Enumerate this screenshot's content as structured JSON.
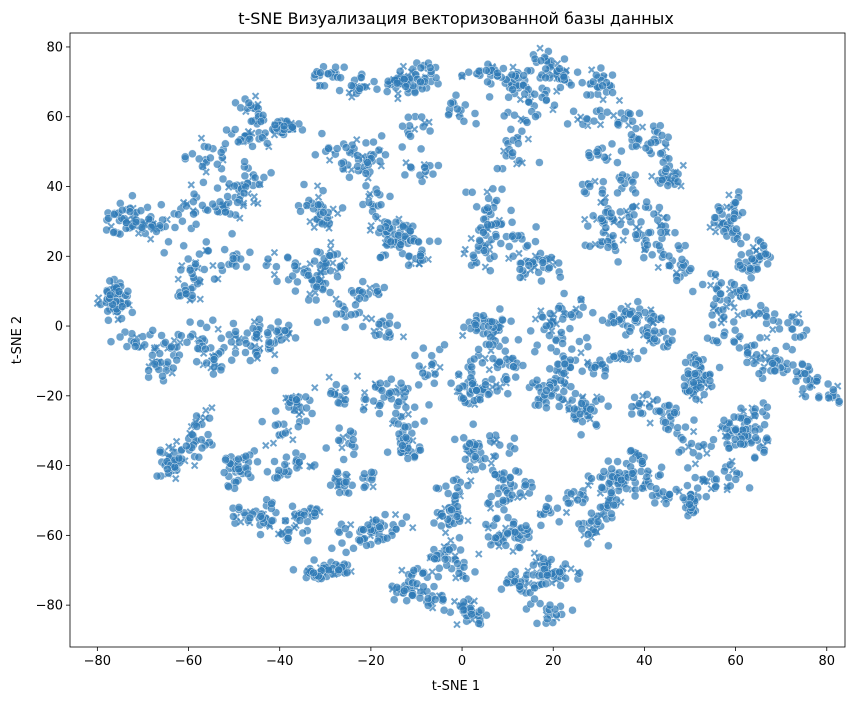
{
  "chart_data": {
    "type": "scatter",
    "title": "t-SNE Визуализация векторизованной базы данных",
    "xlabel": "t-SNE 1",
    "ylabel": "t-SNE 2",
    "xlim": [
      -86,
      84
    ],
    "ylim": [
      -92,
      84
    ],
    "xticks": [
      -80,
      -60,
      -40,
      -20,
      0,
      20,
      40,
      60,
      80
    ],
    "yticks": [
      -80,
      -60,
      -40,
      -20,
      0,
      20,
      40,
      60,
      80
    ],
    "xtick_labels": [
      "−80",
      "−60",
      "−40",
      "−20",
      "0",
      "20",
      "40",
      "60",
      "80"
    ],
    "ytick_labels": [
      "−80",
      "−60",
      "−40",
      "−20",
      "0",
      "20",
      "40",
      "60",
      "80"
    ],
    "grid": false,
    "marker_color": "#2f7bb6",
    "marker_edge": "#ffffff",
    "marker_alpha": 0.7,
    "markers": [
      "circle",
      "x"
    ],
    "clusters": [
      {
        "cx": -75,
        "cy": 5,
        "sx": 3,
        "sy": 6,
        "n": 60
      },
      {
        "cx": -70,
        "cy": -10,
        "sx": 5,
        "sy": 4,
        "n": 55
      },
      {
        "cx": -68,
        "cy": 28,
        "sx": 5,
        "sy": 5,
        "n": 70
      },
      {
        "cx": -60,
        "cy": 20,
        "sx": 4,
        "sy": 10,
        "n": 55
      },
      {
        "cx": -55,
        "cy": 50,
        "sx": 6,
        "sy": 6,
        "n": 65
      },
      {
        "cx": -45,
        "cy": 55,
        "sx": 6,
        "sy": 2,
        "n": 40
      },
      {
        "cx": -36,
        "cy": 58,
        "sx": 4,
        "sy": 2,
        "n": 30
      },
      {
        "cx": -50,
        "cy": 25,
        "sx": 5,
        "sy": 6,
        "n": 50
      },
      {
        "cx": -55,
        "cy": -5,
        "sx": 5,
        "sy": 6,
        "n": 55
      },
      {
        "cx": -60,
        "cy": -35,
        "sx": 4,
        "sy": 5,
        "n": 60
      },
      {
        "cx": -52,
        "cy": -42,
        "sx": 3,
        "sy": 3,
        "n": 30
      },
      {
        "cx": -45,
        "cy": -25,
        "sx": 5,
        "sy": 4,
        "n": 40
      },
      {
        "cx": -45,
        "cy": -52,
        "sx": 3,
        "sy": 4,
        "n": 35
      },
      {
        "cx": -38,
        "cy": -58,
        "sx": 4,
        "sy": 4,
        "n": 40
      },
      {
        "cx": -28,
        "cy": -70,
        "sx": 5,
        "sy": 2,
        "n": 55
      },
      {
        "cx": -38,
        "cy": -40,
        "sx": 4,
        "sy": 4,
        "n": 40
      },
      {
        "cx": -35,
        "cy": 10,
        "sx": 5,
        "sy": 5,
        "n": 50
      },
      {
        "cx": -40,
        "cy": -5,
        "sx": 4,
        "sy": 4,
        "n": 45
      },
      {
        "cx": -30,
        "cy": 30,
        "sx": 4,
        "sy": 7,
        "n": 55
      },
      {
        "cx": -25,
        "cy": 50,
        "sx": 5,
        "sy": 5,
        "n": 50
      },
      {
        "cx": -22,
        "cy": 70,
        "sx": 6,
        "sy": 3,
        "n": 60
      },
      {
        "cx": -8,
        "cy": 70,
        "sx": 5,
        "sy": 3,
        "n": 45
      },
      {
        "cx": -20,
        "cy": 5,
        "sx": 5,
        "sy": 4,
        "n": 50
      },
      {
        "cx": -18,
        "cy": 28,
        "sx": 4,
        "sy": 5,
        "n": 40
      },
      {
        "cx": -28,
        "cy": -28,
        "sx": 4,
        "sy": 5,
        "n": 45
      },
      {
        "cx": -25,
        "cy": -45,
        "sx": 3,
        "sy": 4,
        "n": 30
      },
      {
        "cx": -18,
        "cy": -60,
        "sx": 6,
        "sy": 4,
        "n": 55
      },
      {
        "cx": -12,
        "cy": -72,
        "sx": 4,
        "sy": 3,
        "n": 40
      },
      {
        "cx": -8,
        "cy": -15,
        "sx": 5,
        "sy": 7,
        "n": 60
      },
      {
        "cx": -12,
        "cy": -35,
        "sx": 4,
        "sy": 5,
        "n": 45
      },
      {
        "cx": -5,
        "cy": -50,
        "sx": 4,
        "sy": 5,
        "n": 45
      },
      {
        "cx": 0,
        "cy": -80,
        "sx": 4,
        "sy": 3,
        "n": 55
      },
      {
        "cx": -2,
        "cy": -65,
        "sx": 4,
        "sy": 3,
        "n": 40
      },
      {
        "cx": 10,
        "cy": -62,
        "sx": 5,
        "sy": 4,
        "n": 45
      },
      {
        "cx": 15,
        "cy": -75,
        "sx": 5,
        "sy": 4,
        "n": 50
      },
      {
        "cx": 12,
        "cy": -48,
        "sx": 5,
        "sy": 4,
        "n": 45
      },
      {
        "cx": 5,
        "cy": -35,
        "sx": 4,
        "sy": 4,
        "n": 40
      },
      {
        "cx": 0,
        "cy": -20,
        "sx": 4,
        "sy": 4,
        "n": 40
      },
      {
        "cx": 10,
        "cy": -15,
        "sx": 4,
        "sy": 4,
        "n": 40
      },
      {
        "cx": 5,
        "cy": 0,
        "sx": 5,
        "sy": 4,
        "n": 45
      },
      {
        "cx": -8,
        "cy": 25,
        "sx": 5,
        "sy": 6,
        "n": 55
      },
      {
        "cx": 5,
        "cy": 30,
        "sx": 4,
        "sy": 8,
        "n": 60
      },
      {
        "cx": -5,
        "cy": 55,
        "sx": 5,
        "sy": 5,
        "n": 45
      },
      {
        "cx": 5,
        "cy": 72,
        "sx": 6,
        "sy": 3,
        "n": 55
      },
      {
        "cx": 15,
        "cy": 55,
        "sx": 5,
        "sy": 6,
        "n": 50
      },
      {
        "cx": 20,
        "cy": 70,
        "sx": 5,
        "sy": 3,
        "n": 45
      },
      {
        "cx": 15,
        "cy": 20,
        "sx": 5,
        "sy": 5,
        "n": 50
      },
      {
        "cx": 20,
        "cy": 0,
        "sx": 5,
        "sy": 5,
        "n": 50
      },
      {
        "cx": 22,
        "cy": -20,
        "sx": 5,
        "sy": 4,
        "n": 45
      },
      {
        "cx": 22,
        "cy": -60,
        "sx": 4,
        "sy": 5,
        "n": 40
      },
      {
        "cx": 20,
        "cy": -72,
        "sx": 4,
        "sy": 3,
        "n": 35
      },
      {
        "cx": 30,
        "cy": -45,
        "sx": 5,
        "sy": 3,
        "n": 45
      },
      {
        "cx": 30,
        "cy": -57,
        "sx": 3,
        "sy": 5,
        "n": 35
      },
      {
        "cx": 32,
        "cy": -28,
        "sx": 5,
        "sy": 5,
        "n": 50
      },
      {
        "cx": 30,
        "cy": -12,
        "sx": 5,
        "sy": 3,
        "n": 45
      },
      {
        "cx": 35,
        "cy": 3,
        "sx": 4,
        "sy": 4,
        "n": 40
      },
      {
        "cx": 28,
        "cy": 25,
        "sx": 5,
        "sy": 5,
        "n": 50
      },
      {
        "cx": 28,
        "cy": 45,
        "sx": 4,
        "sy": 5,
        "n": 40
      },
      {
        "cx": 30,
        "cy": 65,
        "sx": 4,
        "sy": 4,
        "n": 40
      },
      {
        "cx": 40,
        "cy": 55,
        "sx": 4,
        "sy": 5,
        "n": 45
      },
      {
        "cx": 42,
        "cy": 40,
        "sx": 4,
        "sy": 5,
        "n": 40
      },
      {
        "cx": 45,
        "cy": 25,
        "sx": 5,
        "sy": 5,
        "n": 45
      },
      {
        "cx": 45,
        "cy": -5,
        "sx": 4,
        "sy": 5,
        "n": 45
      },
      {
        "cx": 45,
        "cy": -25,
        "sx": 4,
        "sy": 4,
        "n": 40
      },
      {
        "cx": 40,
        "cy": -45,
        "sx": 4,
        "sy": 3,
        "n": 35
      },
      {
        "cx": 52,
        "cy": -40,
        "sx": 4,
        "sy": 6,
        "n": 50
      },
      {
        "cx": 52,
        "cy": -15,
        "sx": 4,
        "sy": 5,
        "n": 45
      },
      {
        "cx": 55,
        "cy": 10,
        "sx": 4,
        "sy": 5,
        "n": 45
      },
      {
        "cx": 55,
        "cy": 35,
        "sx": 4,
        "sy": 5,
        "n": 45
      },
      {
        "cx": 65,
        "cy": 25,
        "sx": 4,
        "sy": 5,
        "n": 40
      },
      {
        "cx": 68,
        "cy": 5,
        "sx": 4,
        "sy": 5,
        "n": 45
      },
      {
        "cx": 65,
        "cy": -10,
        "sx": 4,
        "sy": 4,
        "n": 40
      },
      {
        "cx": 68,
        "cy": -28,
        "sx": 4,
        "sy": 5,
        "n": 45
      },
      {
        "cx": 75,
        "cy": -15,
        "sx": 3,
        "sy": 5,
        "n": 35
      },
      {
        "cx": 60,
        "cy": -35,
        "sx": 4,
        "sy": 4,
        "n": 35
      },
      {
        "cx": 50,
        "cy": -52,
        "sx": 2,
        "sy": 3,
        "n": 25
      }
    ]
  }
}
